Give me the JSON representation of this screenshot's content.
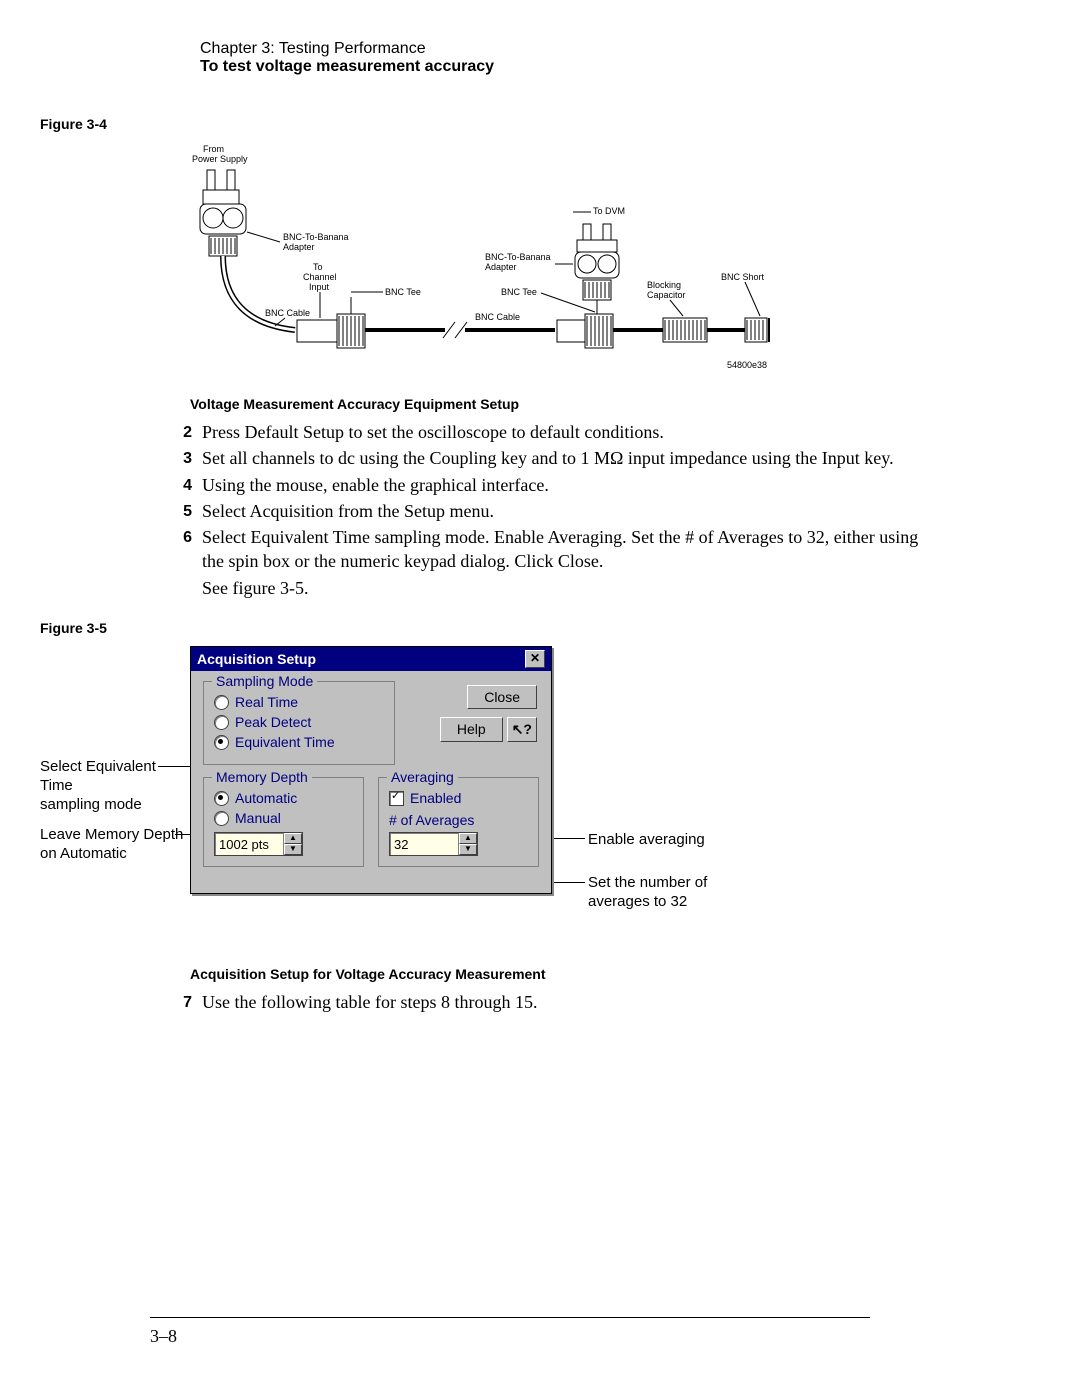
{
  "header": {
    "chapter": "Chapter 3: Testing Performance",
    "subtitle": "To test voltage measurement accuracy"
  },
  "figure1": {
    "label": "Figure 3-4",
    "caption": "Voltage Measurement Accuracy Equipment Setup",
    "labels": {
      "from_ps": "From\nPower Supply",
      "bnc_banana": "BNC-To-Banana\nAdapter",
      "to_chan": "To\nChannel\nInput",
      "bnc_tee": "BNC Tee",
      "bnc_cable": "BNC Cable",
      "to_dvm": "To DVM",
      "blocking_cap": "Blocking\nCapacitor",
      "bnc_short": "BNC Short",
      "part_num": "54800e38"
    }
  },
  "steps_a": [
    {
      "n": "2",
      "t": "Press Default Setup to set the oscilloscope to default conditions."
    },
    {
      "n": "3",
      "t": "Set all channels to dc using the Coupling key and to 1 MΩ input impedance using the Input key."
    },
    {
      "n": "4",
      "t": "Using the mouse, enable the graphical interface."
    },
    {
      "n": "5",
      "t": "Select Acquisition from the Setup menu."
    },
    {
      "n": "6",
      "t": "Select Equivalent Time sampling mode. Enable Averaging. Set the # of Averages to 32, either using the spin box or the numeric keypad dialog. Click Close."
    }
  ],
  "see_figure": "See figure 3-5.",
  "figure2": {
    "label": "Figure 3-5",
    "caption": "Acquisition Setup for Voltage Accuracy Measurement"
  },
  "dialog": {
    "title": "Acquisition Setup",
    "close": "Close",
    "help": "Help",
    "sampling": {
      "legend": "Sampling Mode",
      "real_time": "Real Time",
      "peak_detect": "Peak Detect",
      "equiv_time": "Equivalent Time",
      "selected": "equiv_time"
    },
    "memory": {
      "legend": "Memory Depth",
      "automatic": "Automatic",
      "manual": "Manual",
      "selected": "automatic",
      "pts": "1002 pts"
    },
    "averaging": {
      "legend": "Averaging",
      "enabled": "Enabled",
      "checked": true,
      "num_label": "# of Averages",
      "num_value": "32"
    }
  },
  "annotations": {
    "left1": "Select Equivalent Time\nsampling mode",
    "left2": "Leave Memory Depth\non Automatic",
    "right1": "Enable averaging",
    "right2": "Set the number of\naverages to 32"
  },
  "steps_b": [
    {
      "n": "7",
      "t": "Use the following table for steps 8 through 15."
    }
  ],
  "page_num": "3–8",
  "colors": {
    "titlebar_bg": "#000080",
    "titlebar_fg": "#ffffff",
    "dialog_bg": "#c0c0c0",
    "label_fg": "#000080"
  }
}
